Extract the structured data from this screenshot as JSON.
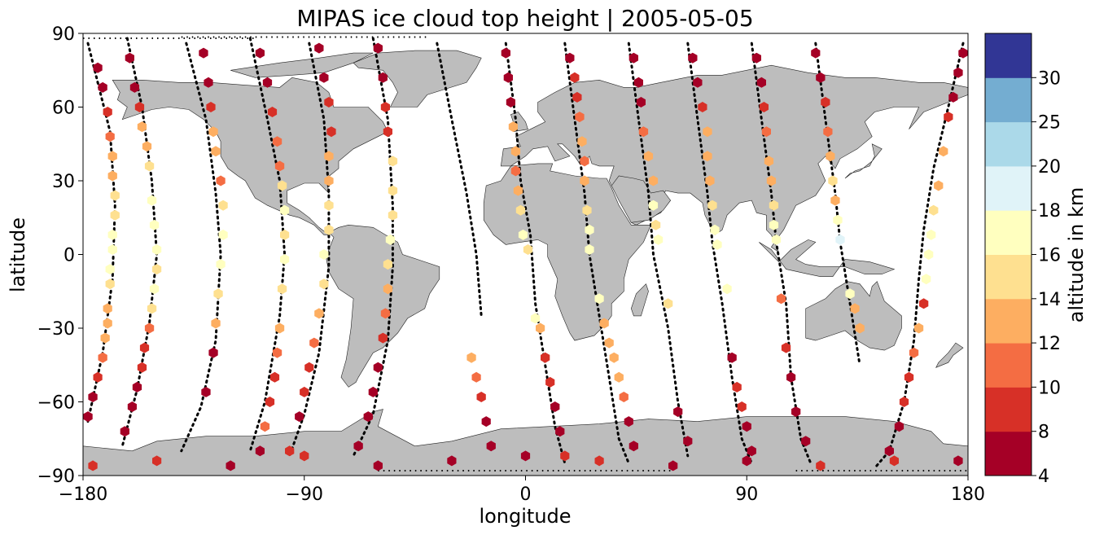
{
  "chart_data": {
    "type": "scatter",
    "title": "MIPAS ice cloud top height | 2005-05-05",
    "xlabel": "longitude",
    "ylabel": "latitude",
    "xlim": [
      -180,
      180
    ],
    "ylim": [
      -90,
      90
    ],
    "xticks": [
      "−180",
      "−90",
      "0",
      "90",
      "180"
    ],
    "yticks": [
      "90",
      "60",
      "30",
      "0",
      "−30",
      "−60",
      "−90"
    ],
    "grid": false,
    "legend": "none",
    "land_color": "#bdbdbd",
    "track_color": "#000000",
    "colorbar": {
      "label": "altitude in km",
      "boundaries": [
        4,
        8,
        10,
        12,
        14,
        16,
        18,
        20,
        25,
        30
      ],
      "tick_labels": [
        "4",
        "8",
        "10",
        "12",
        "14",
        "16",
        "18",
        "20",
        "25",
        "30"
      ],
      "colors": [
        "#a50026",
        "#d73027",
        "#f46d43",
        "#fdae61",
        "#fee090",
        "#ffffbf",
        "#e0f3f8",
        "#abd9e9",
        "#74add1",
        "#313695"
      ]
    },
    "orbit_tracks": [
      {
        "id": 1,
        "points": [
          [
            -178,
            86
          ],
          [
            -169,
            50
          ],
          [
            -167,
            20
          ],
          [
            -168,
            -10
          ],
          [
            -172,
            -40
          ],
          [
            -178,
            -68
          ]
        ],
        "dots": [
          [
            -175,
            -70
          ],
          [
            -170,
            -85
          ]
        ]
      },
      {
        "id": 2,
        "points": [
          [
            -162,
            88
          ],
          [
            -156,
            60
          ],
          [
            -152,
            30
          ],
          [
            -150,
            0
          ],
          [
            -153,
            -28
          ],
          [
            -158,
            -55
          ],
          [
            -164,
            -78
          ]
        ]
      },
      {
        "id": 3,
        "points": [
          [
            -138,
            86
          ],
          [
            -130,
            55
          ],
          [
            -126,
            25
          ],
          [
            -124,
            0
          ],
          [
            -126,
            -35
          ],
          [
            -132,
            -62
          ],
          [
            -140,
            -80
          ]
        ]
      },
      {
        "id": 4,
        "points": [
          [
            -112,
            88
          ],
          [
            -105,
            55
          ],
          [
            -100,
            30
          ],
          [
            -98,
            0
          ],
          [
            -100,
            -25
          ],
          [
            -106,
            -60
          ],
          [
            -112,
            -80
          ]
        ]
      },
      {
        "id": 5,
        "points": [
          [
            -88,
            86
          ],
          [
            -82,
            55
          ],
          [
            -80,
            25
          ],
          [
            -80,
            -5
          ],
          [
            -84,
            -40
          ],
          [
            -90,
            -65
          ],
          [
            -96,
            -82
          ]
        ]
      },
      {
        "id": 6,
        "points": [
          [
            -62,
            88
          ],
          [
            -56,
            55
          ],
          [
            -54,
            20
          ],
          [
            -54,
            -5
          ],
          [
            -56,
            -35
          ],
          [
            -62,
            -65
          ],
          [
            -70,
            -82
          ]
        ]
      },
      {
        "id": 7,
        "points": [
          [
            -36,
            86
          ],
          [
            -30,
            55
          ],
          [
            -24,
            25
          ],
          [
            -20,
            0
          ],
          [
            -18,
            -25
          ]
        ]
      },
      {
        "id": 8,
        "points": [
          [
            -8,
            86
          ],
          [
            -4,
            55
          ],
          [
            -2,
            30
          ],
          [
            2,
            8
          ],
          [
            4,
            -20
          ],
          [
            8,
            -45
          ],
          [
            12,
            -70
          ],
          [
            16,
            -85
          ]
        ]
      },
      {
        "id": 9,
        "points": [
          [
            16,
            86
          ],
          [
            20,
            55
          ],
          [
            24,
            25
          ],
          [
            26,
            0
          ],
          [
            30,
            -25
          ],
          [
            34,
            -50
          ],
          [
            38,
            -75
          ],
          [
            42,
            -85
          ]
        ]
      },
      {
        "id": 10,
        "points": [
          [
            42,
            86
          ],
          [
            46,
            55
          ],
          [
            50,
            25
          ],
          [
            52,
            0
          ],
          [
            58,
            -30
          ],
          [
            62,
            -60
          ],
          [
            66,
            -82
          ]
        ]
      },
      {
        "id": 11,
        "points": [
          [
            66,
            86
          ],
          [
            70,
            55
          ],
          [
            74,
            25
          ],
          [
            76,
            5
          ],
          [
            80,
            -20
          ],
          [
            84,
            -50
          ],
          [
            88,
            -75
          ],
          [
            92,
            -85
          ]
        ]
      },
      {
        "id": 12,
        "points": [
          [
            92,
            86
          ],
          [
            96,
            55
          ],
          [
            100,
            25
          ],
          [
            102,
            5
          ],
          [
            106,
            -20
          ],
          [
            108,
            -50
          ],
          [
            112,
            -75
          ],
          [
            116,
            -85
          ]
        ]
      },
      {
        "id": 13,
        "points": [
          [
            118,
            86
          ],
          [
            122,
            55
          ],
          [
            126,
            25
          ],
          [
            128,
            5
          ],
          [
            132,
            -20
          ],
          [
            136,
            -45
          ]
        ]
      },
      {
        "id": 14,
        "points": [
          [
            178,
            86
          ],
          [
            172,
            60
          ],
          [
            166,
            35
          ],
          [
            162,
            10
          ],
          [
            160,
            -10
          ],
          [
            158,
            -35
          ],
          [
            154,
            -60
          ],
          [
            148,
            -80
          ],
          [
            142,
            -87
          ]
        ]
      }
    ],
    "observations": [
      [
        -174,
        76,
        6
      ],
      [
        -172,
        68,
        7
      ],
      [
        -170,
        58,
        9
      ],
      [
        -169,
        48,
        10
      ],
      [
        -168,
        40,
        12.5
      ],
      [
        -168,
        32,
        13
      ],
      [
        -167,
        24,
        15
      ],
      [
        -167,
        16,
        15.5
      ],
      [
        -168,
        8,
        16.5
      ],
      [
        -168,
        2,
        17
      ],
      [
        -169,
        -6,
        17
      ],
      [
        -169,
        -12,
        15.5
      ],
      [
        -170,
        -22,
        13
      ],
      [
        -170,
        -28,
        12.5
      ],
      [
        -171,
        -34,
        12
      ],
      [
        -172,
        -42,
        10
      ],
      [
        -174,
        -50,
        9
      ],
      [
        -176,
        -58,
        7
      ],
      [
        -178,
        -66,
        6
      ],
      [
        -161,
        80,
        6
      ],
      [
        -159,
        68,
        7
      ],
      [
        -157,
        60,
        9
      ],
      [
        -156,
        52,
        12.5
      ],
      [
        -154,
        44,
        13
      ],
      [
        -153,
        36,
        14
      ],
      [
        -152,
        22,
        17
      ],
      [
        -151,
        12,
        17
      ],
      [
        -150,
        2,
        17
      ],
      [
        -150,
        -6,
        15
      ],
      [
        -151,
        -14,
        17
      ],
      [
        -152,
        -22,
        14.5
      ],
      [
        -153,
        -30,
        11
      ],
      [
        -155,
        -38,
        9
      ],
      [
        -156,
        -46,
        8
      ],
      [
        -158,
        -54,
        7
      ],
      [
        -160,
        -62,
        6
      ],
      [
        -163,
        -72,
        6
      ],
      [
        -131,
        82,
        6
      ],
      [
        -129,
        70,
        7
      ],
      [
        -128,
        60,
        9
      ],
      [
        -127,
        50,
        13
      ],
      [
        -126,
        42,
        13.5
      ],
      [
        -124,
        30,
        11
      ],
      [
        -123,
        20,
        15
      ],
      [
        -123,
        8,
        17
      ],
      [
        -124,
        -4,
        17
      ],
      [
        -125,
        -16,
        15
      ],
      [
        -126,
        -28,
        12.5
      ],
      [
        -127,
        -40,
        7
      ],
      [
        -130,
        -56,
        6
      ],
      [
        -108,
        82,
        6
      ],
      [
        -105,
        70,
        7
      ],
      [
        -103,
        58,
        9
      ],
      [
        -101,
        46,
        10
      ],
      [
        -100,
        36,
        11
      ],
      [
        -99,
        28,
        14
      ],
      [
        -98,
        18,
        16
      ],
      [
        -98,
        8,
        15
      ],
      [
        -98,
        -2,
        16.5
      ],
      [
        -99,
        -14,
        15
      ],
      [
        -100,
        -30,
        12.5
      ],
      [
        -101,
        -40,
        10
      ],
      [
        -102,
        -50,
        9
      ],
      [
        -104,
        -60,
        8
      ],
      [
        -106,
        -70,
        11
      ],
      [
        -108,
        -80,
        6
      ],
      [
        -84,
        84,
        6
      ],
      [
        -82,
        72,
        7
      ],
      [
        -80,
        62,
        8
      ],
      [
        -79,
        50,
        9
      ],
      [
        -80,
        40,
        12.5
      ],
      [
        -80,
        30,
        13
      ],
      [
        -80,
        20,
        14
      ],
      [
        -80,
        10,
        15.5
      ],
      [
        -82,
        0,
        16
      ],
      [
        -82,
        -12,
        15
      ],
      [
        -84,
        -24,
        12
      ],
      [
        -86,
        -36,
        10
      ],
      [
        -88,
        -46,
        9
      ],
      [
        -90,
        -56,
        8
      ],
      [
        -92,
        -66,
        7
      ],
      [
        -96,
        -80,
        9
      ],
      [
        -60,
        84,
        6
      ],
      [
        -58,
        72,
        7
      ],
      [
        -57,
        60,
        8
      ],
      [
        -56,
        50,
        9
      ],
      [
        -54,
        38,
        14
      ],
      [
        -54,
        26,
        15
      ],
      [
        -54,
        16,
        15.5
      ],
      [
        -55,
        6,
        16
      ],
      [
        -56,
        -4,
        15
      ],
      [
        -56,
        -14,
        13
      ],
      [
        -57,
        -24,
        11
      ],
      [
        -58,
        -34,
        9
      ],
      [
        -60,
        -46,
        7
      ],
      [
        -62,
        -56,
        6
      ],
      [
        -64,
        -66,
        6
      ],
      [
        -68,
        -78,
        7
      ],
      [
        -22,
        -42,
        12.5
      ],
      [
        -20,
        -50,
        10
      ],
      [
        -18,
        -58,
        8
      ],
      [
        -16,
        -68,
        7
      ],
      [
        -14,
        -78,
        6
      ],
      [
        -8,
        82,
        6
      ],
      [
        -7,
        72,
        7
      ],
      [
        -6,
        62,
        6
      ],
      [
        -5,
        52,
        13
      ],
      [
        -4,
        42,
        12
      ],
      [
        -4,
        34,
        11
      ],
      [
        -3,
        26,
        12.5
      ],
      [
        -2,
        18,
        15
      ],
      [
        -1,
        8,
        17
      ],
      [
        1,
        2,
        15
      ],
      [
        4,
        -26,
        16
      ],
      [
        6,
        -30,
        13
      ],
      [
        8,
        -42,
        9
      ],
      [
        10,
        -52,
        8
      ],
      [
        12,
        -62,
        6
      ],
      [
        14,
        -72,
        7
      ],
      [
        16,
        -82,
        9
      ],
      [
        18,
        80,
        7
      ],
      [
        20,
        72,
        8
      ],
      [
        21,
        64,
        9
      ],
      [
        22,
        56,
        10
      ],
      [
        23,
        46,
        12
      ],
      [
        24,
        38,
        11
      ],
      [
        24,
        30,
        13
      ],
      [
        25,
        18,
        14
      ],
      [
        26,
        10,
        17
      ],
      [
        26,
        2,
        17
      ],
      [
        30,
        -18,
        16
      ],
      [
        32,
        -28,
        13
      ],
      [
        34,
        -36,
        12
      ],
      [
        36,
        -42,
        13
      ],
      [
        38,
        -50,
        12.5
      ],
      [
        40,
        -58,
        11
      ],
      [
        42,
        -68,
        6
      ],
      [
        44,
        -78,
        6
      ],
      [
        44,
        80,
        6
      ],
      [
        46,
        70,
        7
      ],
      [
        47,
        62,
        6
      ],
      [
        48,
        50,
        10
      ],
      [
        50,
        40,
        12
      ],
      [
        52,
        30,
        13
      ],
      [
        52,
        20,
        17
      ],
      [
        53,
        12,
        14
      ],
      [
        54,
        6,
        16
      ],
      [
        58,
        -20,
        15
      ],
      [
        62,
        -64,
        7
      ],
      [
        66,
        -76,
        6
      ],
      [
        68,
        80,
        6
      ],
      [
        70,
        70,
        7
      ],
      [
        72,
        60,
        9
      ],
      [
        74,
        50,
        12
      ],
      [
        74,
        40,
        13
      ],
      [
        75,
        30,
        13
      ],
      [
        76,
        20,
        14
      ],
      [
        77,
        10,
        17
      ],
      [
        78,
        4,
        16.5
      ],
      [
        82,
        -14,
        17
      ],
      [
        84,
        -42,
        6
      ],
      [
        86,
        -54,
        9
      ],
      [
        88,
        -62,
        8
      ],
      [
        90,
        -70,
        7
      ],
      [
        92,
        -80,
        6
      ],
      [
        94,
        80,
        6
      ],
      [
        96,
        70,
        7
      ],
      [
        97,
        60,
        8
      ],
      [
        98,
        50,
        10
      ],
      [
        99,
        38,
        12.5
      ],
      [
        100,
        30,
        13.5
      ],
      [
        101,
        20,
        15
      ],
      [
        101,
        12,
        16.5
      ],
      [
        102,
        6,
        17
      ],
      [
        104,
        -18,
        11
      ],
      [
        106,
        -38,
        8
      ],
      [
        108,
        -50,
        7
      ],
      [
        110,
        -64,
        6
      ],
      [
        114,
        -76,
        7
      ],
      [
        118,
        82,
        6
      ],
      [
        120,
        72,
        7
      ],
      [
        122,
        62,
        9
      ],
      [
        123,
        50,
        11
      ],
      [
        124,
        40,
        12
      ],
      [
        125,
        30,
        15
      ],
      [
        126,
        22,
        13
      ],
      [
        127,
        14,
        16
      ],
      [
        128,
        6,
        19
      ],
      [
        132,
        -16,
        16
      ],
      [
        134,
        -22,
        13
      ],
      [
        136,
        -30,
        12
      ],
      [
        178,
        82,
        6
      ],
      [
        176,
        74,
        7
      ],
      [
        174,
        64,
        6
      ],
      [
        172,
        56,
        9
      ],
      [
        170,
        42,
        12
      ],
      [
        168,
        28,
        13
      ],
      [
        166,
        18,
        15
      ],
      [
        165,
        8,
        16
      ],
      [
        164,
        0,
        17
      ],
      [
        163,
        -10,
        16.5
      ],
      [
        162,
        -20,
        9
      ],
      [
        160,
        -30,
        12
      ],
      [
        158,
        -40,
        11
      ],
      [
        156,
        -50,
        9
      ],
      [
        154,
        -60,
        8
      ],
      [
        152,
        -70,
        7
      ],
      [
        148,
        -80,
        7
      ],
      [
        -150,
        -84,
        9
      ],
      [
        -120,
        -86,
        6
      ],
      [
        -90,
        -82,
        9
      ],
      [
        -60,
        -86,
        7
      ],
      [
        -30,
        -84,
        7
      ],
      [
        0,
        -82,
        7
      ],
      [
        30,
        -84,
        8
      ],
      [
        60,
        -86,
        6
      ],
      [
        90,
        -84,
        7
      ],
      [
        120,
        -86,
        8
      ],
      [
        150,
        -84,
        9
      ],
      [
        -176,
        -86,
        8
      ],
      [
        176,
        -84,
        7
      ]
    ]
  }
}
